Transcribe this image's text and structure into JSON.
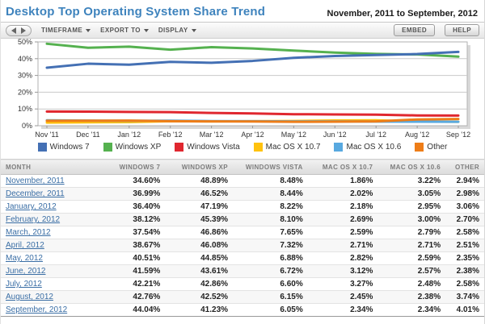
{
  "header": {
    "title": "Desktop Top Operating System Share Trend",
    "date_range": "November, 2011 to September, 2012"
  },
  "toolbar": {
    "menus": [
      {
        "label": "TIMEFRAME"
      },
      {
        "label": "EXPORT TO"
      },
      {
        "label": "DISPLAY"
      }
    ],
    "embed_label": "EMBED",
    "help_label": "HELP"
  },
  "chart_data": {
    "type": "line",
    "title": "",
    "categories": [
      "Nov '11",
      "Dec '11",
      "Jan '12",
      "Feb '12",
      "Mar '12",
      "Apr '12",
      "May '12",
      "Jun '12",
      "Jul '12",
      "Aug '12",
      "Sep '12"
    ],
    "series": [
      {
        "name": "Windows 7",
        "color": "#4470B4",
        "values": [
          34.6,
          36.99,
          36.4,
          38.12,
          37.54,
          38.67,
          40.51,
          41.59,
          42.21,
          42.76,
          44.04
        ]
      },
      {
        "name": "Windows XP",
        "color": "#55B14F",
        "values": [
          48.89,
          46.52,
          47.19,
          45.39,
          46.86,
          46.08,
          44.85,
          43.61,
          42.86,
          42.52,
          41.23
        ]
      },
      {
        "name": "Windows Vista",
        "color": "#E0272F",
        "values": [
          8.48,
          8.44,
          8.22,
          8.1,
          7.65,
          7.32,
          6.88,
          6.72,
          6.6,
          6.15,
          6.05
        ]
      },
      {
        "name": "Mac OS X 10.7",
        "color": "#FFC20E",
        "values": [
          1.86,
          2.02,
          2.18,
          2.69,
          2.59,
          2.71,
          2.82,
          3.12,
          3.27,
          2.45,
          2.34
        ]
      },
      {
        "name": "Mac OS X 10.6",
        "color": "#58A9E0",
        "values": [
          3.22,
          3.05,
          2.95,
          3.0,
          2.79,
          2.71,
          2.59,
          2.57,
          2.48,
          2.38,
          2.34
        ]
      },
      {
        "name": "Other",
        "color": "#EE7D18",
        "values": [
          2.94,
          2.98,
          3.06,
          2.7,
          2.58,
          2.51,
          2.35,
          2.38,
          2.58,
          3.74,
          4.01
        ]
      }
    ],
    "ylim": [
      0,
      50
    ],
    "ytick_step": 10,
    "ytick_labels": [
      "0%",
      "10%",
      "20%",
      "30%",
      "40%",
      "50%"
    ],
    "grid": true,
    "legend_position": "bottom",
    "xlabel": "",
    "ylabel": ""
  },
  "table": {
    "columns": [
      "MONTH",
      "WINDOWS 7",
      "WINDOWS XP",
      "WINDOWS VISTA",
      "MAC OS X 10.7",
      "MAC OS X 10.6",
      "OTHER"
    ],
    "rows": [
      [
        "November, 2011",
        "34.60%",
        "48.89%",
        "8.48%",
        "1.86%",
        "3.22%",
        "2.94%"
      ],
      [
        "December, 2011",
        "36.99%",
        "46.52%",
        "8.44%",
        "2.02%",
        "3.05%",
        "2.98%"
      ],
      [
        "January, 2012",
        "36.40%",
        "47.19%",
        "8.22%",
        "2.18%",
        "2.95%",
        "3.06%"
      ],
      [
        "February, 2012",
        "38.12%",
        "45.39%",
        "8.10%",
        "2.69%",
        "3.00%",
        "2.70%"
      ],
      [
        "March, 2012",
        "37.54%",
        "46.86%",
        "7.65%",
        "2.59%",
        "2.79%",
        "2.58%"
      ],
      [
        "April, 2012",
        "38.67%",
        "46.08%",
        "7.32%",
        "2.71%",
        "2.71%",
        "2.51%"
      ],
      [
        "May, 2012",
        "40.51%",
        "44.85%",
        "6.88%",
        "2.82%",
        "2.59%",
        "2.35%"
      ],
      [
        "June, 2012",
        "41.59%",
        "43.61%",
        "6.72%",
        "3.12%",
        "2.57%",
        "2.38%"
      ],
      [
        "July, 2012",
        "42.21%",
        "42.86%",
        "6.60%",
        "3.27%",
        "2.48%",
        "2.58%"
      ],
      [
        "August, 2012",
        "42.76%",
        "42.52%",
        "6.15%",
        "2.45%",
        "2.38%",
        "3.74%"
      ],
      [
        "September, 2012",
        "44.04%",
        "41.23%",
        "6.05%",
        "2.34%",
        "2.34%",
        "4.01%"
      ]
    ]
  }
}
